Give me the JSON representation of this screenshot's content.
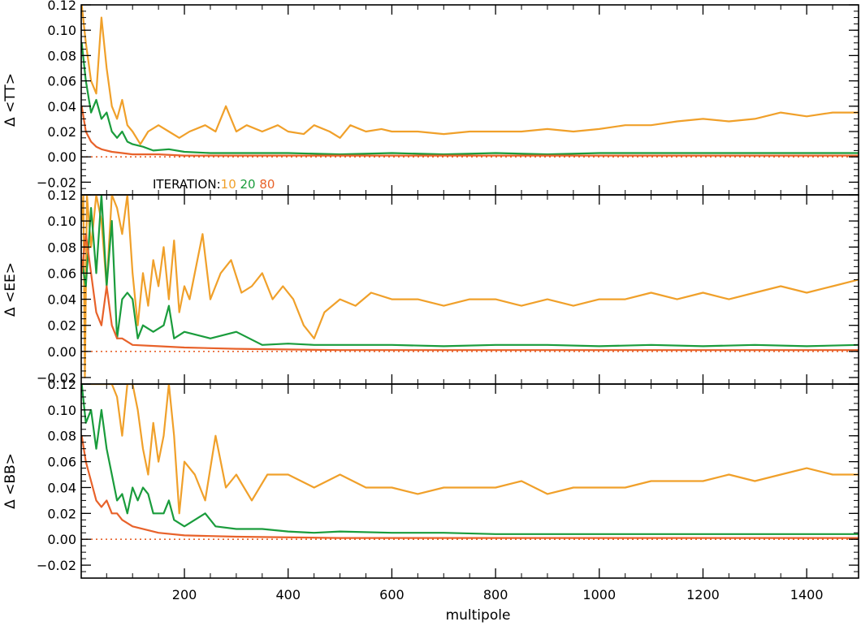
{
  "chart_data": {
    "type": "line",
    "xlabel": "multipole",
    "xlim": [
      1,
      1500
    ],
    "x_ticks": [
      "200",
      "400",
      "600",
      "800",
      "1000",
      "1200",
      "1400"
    ],
    "x_tick_values": [
      200,
      400,
      600,
      800,
      1000,
      1200,
      1400
    ],
    "legend": {
      "title": "ITERATION:",
      "placement": "bottom of top panel",
      "entries": [
        {
          "label": "10",
          "color": "#f0a02a"
        },
        {
          "label": "20",
          "color": "#1a9c3c"
        },
        {
          "label": "80",
          "color": "#e8622a"
        }
      ]
    },
    "panels": [
      {
        "ylabel": "Δ <TT>",
        "ylim": [
          -0.03,
          0.12
        ],
        "y_ticks": [
          "−0.02",
          "0.00",
          "0.02",
          "0.04",
          "0.06",
          "0.08",
          "0.10",
          "0.12"
        ],
        "y_tick_values": [
          -0.02,
          0.0,
          0.02,
          0.04,
          0.06,
          0.08,
          0.1,
          0.12
        ],
        "zero_line": true,
        "series": [
          {
            "name": "10",
            "color": "#f0a02a",
            "x": [
              2,
              10,
              20,
              30,
              40,
              50,
              60,
              70,
              80,
              90,
              100,
              115,
              130,
              150,
              170,
              190,
              210,
              240,
              260,
              280,
              300,
              320,
              350,
              380,
              400,
              430,
              450,
              480,
              500,
              520,
              550,
              580,
              600,
              650,
              700,
              750,
              800,
              850,
              900,
              950,
              1000,
              1050,
              1100,
              1150,
              1200,
              1250,
              1300,
              1350,
              1400,
              1450,
              1500
            ],
            "y": [
              0.12,
              0.09,
              0.06,
              0.05,
              0.11,
              0.07,
              0.04,
              0.03,
              0.045,
              0.025,
              0.02,
              0.01,
              0.02,
              0.025,
              0.02,
              0.015,
              0.02,
              0.025,
              0.02,
              0.04,
              0.02,
              0.025,
              0.02,
              0.025,
              0.02,
              0.018,
              0.025,
              0.02,
              0.015,
              0.025,
              0.02,
              0.022,
              0.02,
              0.02,
              0.018,
              0.02,
              0.02,
              0.02,
              0.022,
              0.02,
              0.022,
              0.025,
              0.025,
              0.028,
              0.03,
              0.028,
              0.03,
              0.035,
              0.032,
              0.035,
              0.035
            ]
          },
          {
            "name": "20",
            "color": "#1a9c3c",
            "x": [
              2,
              10,
              20,
              30,
              40,
              50,
              60,
              70,
              80,
              90,
              100,
              120,
              140,
              170,
              200,
              250,
              300,
              400,
              500,
              600,
              700,
              800,
              900,
              1000,
              1100,
              1200,
              1300,
              1400,
              1500
            ],
            "y": [
              0.09,
              0.06,
              0.035,
              0.045,
              0.03,
              0.035,
              0.02,
              0.015,
              0.02,
              0.012,
              0.01,
              0.008,
              0.005,
              0.006,
              0.004,
              0.003,
              0.003,
              0.003,
              0.002,
              0.003,
              0.002,
              0.003,
              0.002,
              0.003,
              0.003,
              0.003,
              0.003,
              0.003,
              0.003
            ]
          },
          {
            "name": "80",
            "color": "#e8622a",
            "x": [
              2,
              10,
              20,
              30,
              40,
              60,
              80,
              100,
              150,
              200,
              300,
              500,
              800,
              1000,
              1200,
              1500
            ],
            "y": [
              0.04,
              0.02,
              0.012,
              0.008,
              0.006,
              0.004,
              0.003,
              0.002,
              0.002,
              0.001,
              0.001,
              0.001,
              0.001,
              0.001,
              0.001,
              0.001
            ]
          }
        ]
      },
      {
        "ylabel": "Δ <EE>",
        "ylim": [
          -0.025,
          0.12
        ],
        "y_ticks": [
          "−0.02",
          "0.00",
          "0.02",
          "0.04",
          "0.06",
          "0.08",
          "0.10",
          "0.12"
        ],
        "y_tick_values": [
          -0.02,
          0.0,
          0.02,
          0.04,
          0.06,
          0.08,
          0.1,
          0.12
        ],
        "zero_line": true,
        "series": [
          {
            "name": "10",
            "color": "#f0a02a",
            "x": [
              2,
              5,
              8,
              12,
              20,
              30,
              40,
              50,
              60,
              70,
              80,
              90,
              100,
              110,
              120,
              130,
              140,
              150,
              160,
              170,
              180,
              190,
              200,
              210,
              220,
              235,
              250,
              270,
              290,
              310,
              330,
              350,
              370,
              390,
              410,
              430,
              450,
              470,
              500,
              530,
              560,
              600,
              650,
              700,
              750,
              800,
              850,
              900,
              950,
              1000,
              1050,
              1100,
              1150,
              1200,
              1250,
              1300,
              1350,
              1400,
              1450,
              1500
            ],
            "y": [
              0.1,
              0.12,
              -0.02,
              0.12,
              0.08,
              0.12,
              0.1,
              0.05,
              0.12,
              0.11,
              0.09,
              0.12,
              0.06,
              0.02,
              0.06,
              0.035,
              0.07,
              0.05,
              0.08,
              0.04,
              0.085,
              0.03,
              0.05,
              0.04,
              0.06,
              0.09,
              0.04,
              0.06,
              0.07,
              0.045,
              0.05,
              0.06,
              0.04,
              0.05,
              0.04,
              0.02,
              0.01,
              0.03,
              0.04,
              0.035,
              0.045,
              0.04,
              0.04,
              0.035,
              0.04,
              0.04,
              0.035,
              0.04,
              0.035,
              0.04,
              0.04,
              0.045,
              0.04,
              0.045,
              0.04,
              0.045,
              0.05,
              0.045,
              0.05,
              0.055
            ]
          },
          {
            "name": "20",
            "color": "#1a9c3c",
            "x": [
              2,
              10,
              20,
              30,
              40,
              50,
              60,
              70,
              80,
              90,
              100,
              110,
              120,
              140,
              160,
              170,
              180,
              200,
              250,
              300,
              350,
              400,
              450,
              500,
              600,
              700,
              800,
              900,
              1000,
              1100,
              1200,
              1300,
              1400,
              1500
            ],
            "y": [
              0.07,
              0.05,
              0.11,
              0.06,
              0.12,
              0.05,
              0.1,
              0.01,
              0.04,
              0.045,
              0.04,
              0.01,
              0.02,
              0.015,
              0.02,
              0.035,
              0.01,
              0.015,
              0.01,
              0.015,
              0.005,
              0.006,
              0.005,
              0.005,
              0.005,
              0.004,
              0.005,
              0.005,
              0.004,
              0.005,
              0.004,
              0.005,
              0.004,
              0.005
            ]
          },
          {
            "name": "80",
            "color": "#e8622a",
            "x": [
              2,
              10,
              20,
              30,
              40,
              50,
              60,
              70,
              80,
              100,
              150,
              200,
              300,
              500,
              800,
              1000,
              1200,
              1500
            ],
            "y": [
              0.06,
              0.09,
              0.06,
              0.03,
              0.02,
              0.05,
              0.02,
              0.01,
              0.01,
              0.005,
              0.004,
              0.003,
              0.002,
              0.001,
              0.001,
              0.001,
              0.001,
              0.001
            ]
          }
        ]
      },
      {
        "ylabel": "Δ <BB>",
        "ylim": [
          -0.03,
          0.12
        ],
        "y_ticks": [
          "−0.02",
          "0.00",
          "0.02",
          "0.04",
          "0.06",
          "0.08",
          "0.10",
          "0.12"
        ],
        "y_tick_values": [
          -0.02,
          0.0,
          0.02,
          0.04,
          0.06,
          0.08,
          0.1,
          0.12
        ],
        "zero_line": true,
        "series": [
          {
            "name": "10",
            "color": "#f0a02a",
            "x": [
              20,
              40,
              60,
              70,
              80,
              90,
              100,
              110,
              120,
              130,
              140,
              150,
              160,
              170,
              180,
              190,
              200,
              220,
              240,
              260,
              280,
              300,
              330,
              360,
              400,
              450,
              500,
              550,
              600,
              650,
              700,
              750,
              800,
              850,
              900,
              950,
              1000,
              1050,
              1100,
              1150,
              1200,
              1250,
              1300,
              1350,
              1400,
              1450,
              1500
            ],
            "y": [
              0.12,
              0.12,
              0.12,
              0.11,
              0.08,
              0.12,
              0.12,
              0.1,
              0.07,
              0.05,
              0.09,
              0.06,
              0.08,
              0.12,
              0.08,
              0.02,
              0.06,
              0.05,
              0.03,
              0.08,
              0.04,
              0.05,
              0.03,
              0.05,
              0.05,
              0.04,
              0.05,
              0.04,
              0.04,
              0.035,
              0.04,
              0.04,
              0.04,
              0.045,
              0.035,
              0.04,
              0.04,
              0.04,
              0.045,
              0.045,
              0.045,
              0.05,
              0.045,
              0.05,
              0.055,
              0.05,
              0.05
            ]
          },
          {
            "name": "20",
            "color": "#1a9c3c",
            "x": [
              2,
              10,
              20,
              30,
              40,
              50,
              60,
              70,
              80,
              90,
              100,
              110,
              120,
              130,
              140,
              160,
              170,
              180,
              200,
              220,
              240,
              260,
              300,
              350,
              400,
              450,
              500,
              600,
              700,
              800,
              900,
              1000,
              1100,
              1200,
              1300,
              1400,
              1500
            ],
            "y": [
              0.12,
              0.09,
              0.1,
              0.07,
              0.1,
              0.07,
              0.05,
              0.03,
              0.035,
              0.02,
              0.04,
              0.03,
              0.04,
              0.035,
              0.02,
              0.02,
              0.03,
              0.015,
              0.01,
              0.015,
              0.02,
              0.01,
              0.008,
              0.008,
              0.006,
              0.005,
              0.006,
              0.005,
              0.005,
              0.004,
              0.004,
              0.004,
              0.004,
              0.004,
              0.004,
              0.004,
              0.004
            ]
          },
          {
            "name": "80",
            "color": "#e8622a",
            "x": [
              2,
              10,
              20,
              30,
              40,
              50,
              60,
              70,
              80,
              100,
              150,
              200,
              300,
              500,
              800,
              1000,
              1200,
              1500
            ],
            "y": [
              0.08,
              0.06,
              0.045,
              0.03,
              0.025,
              0.03,
              0.02,
              0.02,
              0.015,
              0.01,
              0.005,
              0.003,
              0.002,
              0.001,
              0.001,
              0.001,
              0.001,
              0.001
            ]
          }
        ]
      }
    ]
  }
}
